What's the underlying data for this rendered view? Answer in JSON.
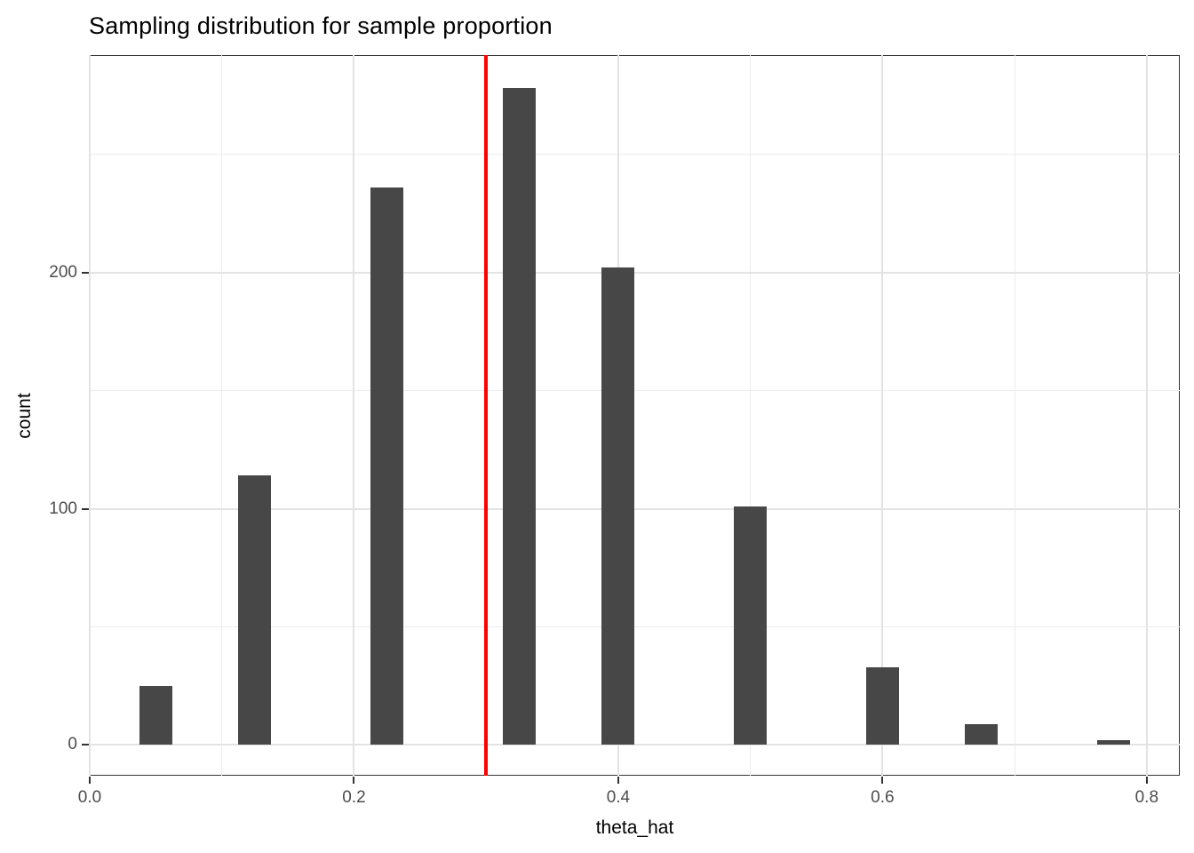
{
  "page_title": "Sampling distribution for sample proportion",
  "chart_data": {
    "type": "bar",
    "title": "Sampling distribution for sample proportion",
    "xlabel": "theta_hat",
    "ylabel": "count",
    "x": [
      0.05,
      0.125,
      0.225,
      0.325,
      0.4,
      0.5,
      0.6,
      0.675,
      0.775
    ],
    "values": [
      25,
      114,
      236,
      278,
      202,
      101,
      33,
      9,
      2
    ],
    "total_samples": 1000,
    "bar_width_x": 0.025,
    "xlim": [
      0,
      0.825
    ],
    "ylim": [
      -13,
      292
    ],
    "x_major_ticks": [
      0,
      0.2,
      0.4,
      0.6,
      0.8
    ],
    "x_tick_labels": [
      "0.0",
      "0.2",
      "0.4",
      "0.6",
      "0.8"
    ],
    "x_minor_gridlines": [
      0.1,
      0.3,
      0.5,
      0.7
    ],
    "y_major_ticks": [
      0,
      100,
      200
    ],
    "y_tick_labels": [
      "0",
      "100",
      "200"
    ],
    "y_minor_gridlines": [
      50,
      150,
      250
    ],
    "vline": {
      "x": 0.3
    },
    "grid": true,
    "legend_position": "none"
  },
  "colors": {
    "bar_fill": "#474747",
    "vline": "#FF0000",
    "panel_border": "#333333",
    "panel_background": "#FFFFFF",
    "grid_major": "#E3E3E3",
    "grid_minor": "#EDEDED",
    "tick_mark": "#333333",
    "tick_label": "#4D4D4D",
    "axis_title": "#000000",
    "title": "#000000"
  }
}
